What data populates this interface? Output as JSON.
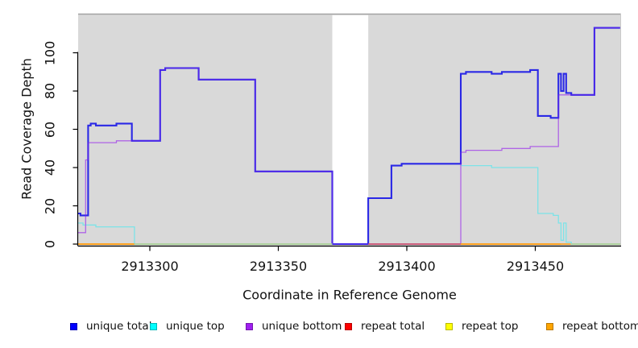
{
  "axes": {
    "x_label": "Coordinate in Reference Genome",
    "y_label": "Read Coverage Depth"
  },
  "legend": {
    "items": [
      {
        "label": "unique total",
        "color": "#0000ff"
      },
      {
        "label": "unique top",
        "color": "#00ffff"
      },
      {
        "label": "unique bottom",
        "color": "#a020f0"
      },
      {
        "label": "repeat total",
        "color": "#ff0000"
      },
      {
        "label": "repeat top",
        "color": "#ffff00"
      },
      {
        "label": "repeat bottom",
        "color": "#ffa500"
      }
    ]
  },
  "chart_data": {
    "type": "line",
    "style": "step-coverage",
    "title": "",
    "xlabel": "Coordinate in Reference Genome",
    "ylabel": "Read Coverage Depth",
    "xlim": [
      2913272,
      2913483
    ],
    "ylim": [
      0,
      120
    ],
    "x_ticks": [
      2913300,
      2913350,
      2913400,
      2913450
    ],
    "y_ticks": [
      0,
      20,
      40,
      60,
      80,
      100
    ],
    "grid": false,
    "plot_background": "#d9d9d9",
    "no_data_region": {
      "from": 2913371,
      "to": 2913385,
      "color": "#ffffff"
    },
    "series": [
      {
        "name": "unique total",
        "line_color": "#2a28e6",
        "legend_color": "#0000ff",
        "width": 2.1,
        "steps": [
          [
            2913272,
            16
          ],
          [
            2913273,
            15
          ],
          [
            2913276,
            62
          ],
          [
            2913277,
            63
          ],
          [
            2913279,
            62
          ],
          [
            2913287,
            63
          ],
          [
            2913293,
            54
          ],
          [
            2913304,
            91
          ],
          [
            2913306,
            92
          ],
          [
            2913319,
            86
          ],
          [
            2913341,
            38
          ],
          [
            2913371,
            0
          ],
          [
            2913385,
            24
          ],
          [
            2913394,
            41
          ],
          [
            2913398,
            42
          ],
          [
            2913421,
            89
          ],
          [
            2913423,
            90
          ],
          [
            2913433,
            89
          ],
          [
            2913437,
            90
          ],
          [
            2913448,
            91
          ],
          [
            2913451,
            67
          ],
          [
            2913456,
            66
          ],
          [
            2913459,
            89
          ],
          [
            2913460,
            80
          ],
          [
            2913461,
            89
          ],
          [
            2913462,
            79
          ],
          [
            2913464,
            78
          ],
          [
            2913473,
            113
          ]
        ]
      },
      {
        "name": "unique top",
        "line_color": "#7ce3e8",
        "legend_color": "#00ffff",
        "width": 1.3,
        "steps": [
          [
            2913272,
            11
          ],
          [
            2913274,
            10
          ],
          [
            2913279,
            9
          ],
          [
            2913294,
            0
          ],
          [
            2913385,
            24
          ],
          [
            2913394,
            41
          ],
          [
            2913398,
            42
          ],
          [
            2913421,
            41
          ],
          [
            2913433,
            40
          ],
          [
            2913451,
            16
          ],
          [
            2913457,
            15
          ],
          [
            2913459,
            11
          ],
          [
            2913460,
            2
          ],
          [
            2913461,
            11
          ],
          [
            2913462,
            1
          ],
          [
            2913464,
            0
          ]
        ]
      },
      {
        "name": "unique bottom",
        "line_color": "#b98fe0",
        "legend_color": "#a020f0",
        "width": 1.3,
        "steps": [
          [
            2913272,
            6
          ],
          [
            2913275,
            44
          ],
          [
            2913276,
            53
          ],
          [
            2913287,
            54
          ],
          [
            2913304,
            91
          ],
          [
            2913306,
            92
          ],
          [
            2913319,
            86
          ],
          [
            2913341,
            38
          ],
          [
            2913371,
            0
          ],
          [
            2913421,
            48
          ],
          [
            2913423,
            49
          ],
          [
            2913437,
            50
          ],
          [
            2913448,
            51
          ],
          [
            2913459,
            78
          ],
          [
            2913473,
            113
          ]
        ]
      },
      {
        "name": "repeat total",
        "line_color": "#c8547c",
        "legend_color": "#ff0000",
        "width": 1.3,
        "steps": [
          [
            2913272,
            0
          ]
        ]
      },
      {
        "name": "repeat top",
        "line_color": "#f2e440",
        "legend_color": "#ffff00",
        "width": 1.3,
        "steps": [
          [
            2913272,
            0
          ]
        ]
      },
      {
        "name": "repeat bottom",
        "line_color": "#ffa018",
        "legend_color": "#ffa500",
        "width": 1.6,
        "steps": [
          [
            2913272,
            0
          ]
        ]
      }
    ],
    "zero_line_visible_segments": [
      {
        "from": 2913272,
        "to": 2913294,
        "color": "#ffa018"
      },
      {
        "from": 2913294,
        "to": 2913371,
        "color": "#a8d5a2"
      },
      {
        "from": 2913385,
        "to": 2913421,
        "color": "#c8547c"
      },
      {
        "from": 2913421,
        "to": 2913460,
        "color": "#ffa018"
      },
      {
        "from": 2913464,
        "to": 2913483,
        "color": "#a8d5a2"
      }
    ]
  }
}
